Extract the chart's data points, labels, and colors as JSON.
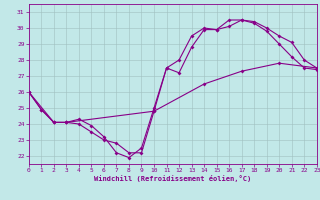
{
  "xlabel": "Windchill (Refroidissement éolien,°C)",
  "xlim": [
    0,
    23
  ],
  "ylim": [
    21.5,
    31.5
  ],
  "yticks": [
    22,
    23,
    24,
    25,
    26,
    27,
    28,
    29,
    30,
    31
  ],
  "xticks": [
    0,
    1,
    2,
    3,
    4,
    5,
    6,
    7,
    8,
    9,
    10,
    11,
    12,
    13,
    14,
    15,
    16,
    17,
    18,
    19,
    20,
    21,
    22,
    23
  ],
  "bg_color": "#c2e8e8",
  "grid_color": "#a0c0c0",
  "line_color": "#880088",
  "line1_x": [
    0,
    1,
    2,
    3,
    4,
    5,
    6,
    7,
    8,
    9,
    10,
    11,
    12,
    13,
    14,
    15,
    16,
    17,
    18,
    19,
    20,
    21,
    22,
    23
  ],
  "line1_y": [
    26.0,
    24.9,
    24.1,
    24.1,
    24.0,
    23.5,
    23.0,
    22.8,
    22.2,
    22.2,
    24.8,
    27.5,
    27.2,
    28.8,
    29.9,
    29.9,
    30.5,
    30.5,
    30.4,
    30.0,
    29.5,
    29.1,
    28.0,
    27.5
  ],
  "line2_x": [
    0,
    1,
    2,
    3,
    4,
    5,
    6,
    7,
    8,
    9,
    10,
    11,
    12,
    13,
    14,
    15,
    16,
    17,
    18,
    19,
    20,
    21,
    22,
    23
  ],
  "line2_y": [
    26.0,
    24.9,
    24.1,
    24.1,
    24.3,
    23.9,
    23.2,
    22.2,
    21.9,
    22.5,
    25.0,
    27.5,
    28.0,
    29.5,
    30.0,
    29.9,
    30.1,
    30.5,
    30.3,
    29.8,
    29.0,
    28.2,
    27.5,
    27.4
  ],
  "line3_x": [
    0,
    2,
    3,
    10,
    14,
    17,
    20,
    23
  ],
  "line3_y": [
    26.0,
    24.1,
    24.1,
    24.8,
    26.5,
    27.3,
    27.8,
    27.5
  ]
}
